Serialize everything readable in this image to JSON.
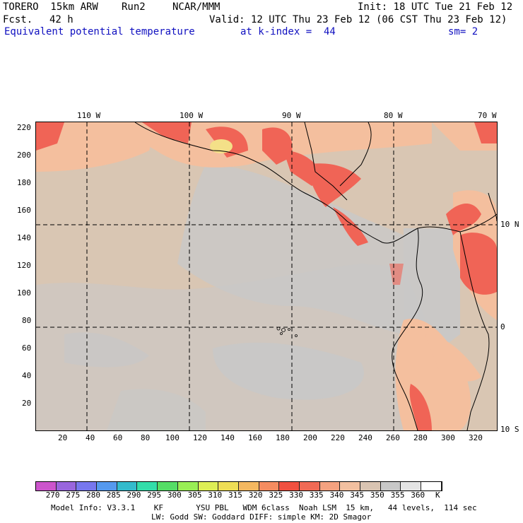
{
  "header": {
    "model": "TORERO  15km ARW",
    "run": "Run2",
    "org": "NCAR/MMM",
    "init": "Init: 18 UTC Tue 21 Feb 12",
    "fcst_label": "Fcst.",
    "fcst_value": "42 h",
    "valid": "Valid: 12 UTC Thu 23 Feb 12 (06 CST Thu 23 Feb 12)",
    "field": "Equivalent potential temperature",
    "level": "at k-index =  44",
    "smooth": "sm= 2"
  },
  "top_longitudes": [
    "110 W",
    "100 W",
    "90 W",
    "80 W",
    "70 W"
  ],
  "right_latitudes": [
    "10 N",
    "0",
    "10 S"
  ],
  "y_ticks": [
    "220",
    "200",
    "180",
    "160",
    "140",
    "120",
    "100",
    "80",
    "60",
    "40",
    "20"
  ],
  "x_ticks": [
    "20",
    "40",
    "60",
    "80",
    "100",
    "120",
    "140",
    "160",
    "180",
    "200",
    "220",
    "240",
    "260",
    "280",
    "300",
    "320"
  ],
  "colorbar": {
    "colors": [
      "#cc55cc",
      "#9966dd",
      "#7777ee",
      "#5599ee",
      "#33bbcc",
      "#33ddaa",
      "#55dd66",
      "#99ee55",
      "#ddee55",
      "#eedd55",
      "#f4b860",
      "#f48c60",
      "#f05040",
      "#f06a55",
      "#f4a280",
      "#f2c0a0",
      "#d9c4b2",
      "#c8c8c8",
      "#e4e4e4",
      "#ffffff"
    ],
    "labels": [
      "270",
      "275",
      "280",
      "285",
      "290",
      "295",
      "300",
      "305",
      "310",
      "315",
      "320",
      "325",
      "330",
      "335",
      "340",
      "345",
      "350",
      "355",
      "360",
      "K"
    ]
  },
  "footer": {
    "line1": "Model Info: V3.3.1    KF       YSU PBL   WDM 6class  Noah LSM  15 km,   44 levels,  114 sec",
    "line2": "LW: Godd SW: Goddard DIFF: simple KM: 2D Smagor"
  }
}
